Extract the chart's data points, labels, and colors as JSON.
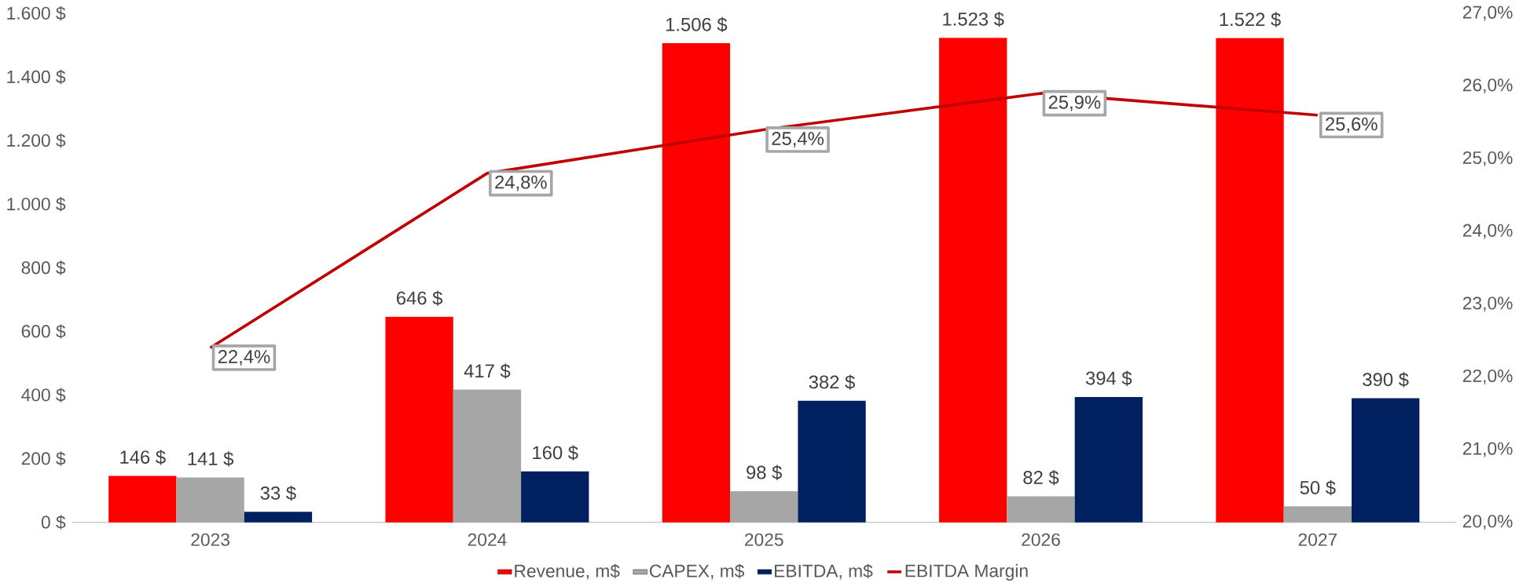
{
  "chart_data": {
    "type": "bar",
    "categories": [
      "2023",
      "2024",
      "2025",
      "2026",
      "2027"
    ],
    "series": [
      {
        "name": "Revenue, m$",
        "color": "#ff0000",
        "values": [
          146,
          646,
          1506,
          1523,
          1522
        ],
        "value_labels": [
          "146 $",
          "646 $",
          "1.506 $",
          "1.523 $",
          "1.522 $"
        ]
      },
      {
        "name": "CAPEX, m$",
        "color": "#a6a6a6",
        "values": [
          141,
          417,
          98,
          82,
          50
        ],
        "value_labels": [
          "141 $",
          "417 $",
          "98 $",
          "82 $",
          "50 $"
        ]
      },
      {
        "name": "EBITDA, m$",
        "color": "#002060",
        "values": [
          33,
          160,
          382,
          394,
          390
        ],
        "value_labels": [
          "33 $",
          "160 $",
          "382 $",
          "394 $",
          "390 $"
        ]
      },
      {
        "name": "EBITDA Margin",
        "type": "line",
        "axis": "y2",
        "color": "#c00000",
        "values": [
          22.4,
          24.8,
          25.4,
          25.9,
          25.6
        ],
        "value_labels": [
          "22,4%",
          "24,8%",
          "25,4%",
          "25,9%",
          "25,6%"
        ]
      }
    ],
    "ylim": [
      0,
      1600
    ],
    "yticks": [
      {
        "value": 0,
        "label": "0 $"
      },
      {
        "value": 200,
        "label": "200 $"
      },
      {
        "value": 400,
        "label": "400 $"
      },
      {
        "value": 600,
        "label": "600 $"
      },
      {
        "value": 800,
        "label": "800 $"
      },
      {
        "value": 1000,
        "label": "1.000 $"
      },
      {
        "value": 1200,
        "label": "1.200 $"
      },
      {
        "value": 1400,
        "label": "1.400 $"
      },
      {
        "value": 1600,
        "label": "1.600 $"
      }
    ],
    "y2lim": [
      20,
      27
    ],
    "y2ticks": [
      {
        "value": 20,
        "label": "20,0%"
      },
      {
        "value": 21,
        "label": "21,0%"
      },
      {
        "value": 22,
        "label": "22,0%"
      },
      {
        "value": 23,
        "label": "23,0%"
      },
      {
        "value": 24,
        "label": "24,0%"
      },
      {
        "value": 25,
        "label": "25,0%"
      },
      {
        "value": 26,
        "label": "26,0%"
      },
      {
        "value": 27,
        "label": "27,0%"
      }
    ],
    "legend": "bottom"
  }
}
